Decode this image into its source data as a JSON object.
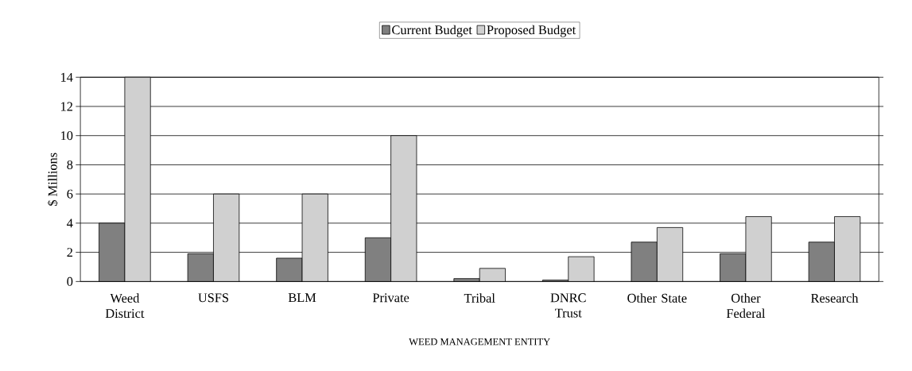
{
  "chart_data": {
    "type": "bar",
    "xlabel": "WEED MANAGEMENT ENTITY",
    "ylabel": "$ Millions",
    "categories": [
      "Weed District",
      "USFS",
      "BLM",
      "Private",
      "Tribal",
      "DNRC Trust",
      "Other State",
      "Other Federal",
      "Research"
    ],
    "series": [
      {
        "name": "Current Budget",
        "color": "#808080",
        "values": [
          4,
          1.9,
          1.6,
          3,
          0.2,
          0.1,
          2.7,
          1.9,
          2.7
        ]
      },
      {
        "name": "Proposed Budget",
        "color": "#d0d0d0",
        "values": [
          14,
          6,
          6,
          10,
          0.9,
          1.7,
          3.7,
          4.45,
          4.45
        ]
      }
    ],
    "ylim": [
      0,
      14
    ],
    "yticks": [
      0,
      2,
      4,
      6,
      8,
      10,
      12,
      14
    ],
    "grid": "y",
    "legend": "top"
  }
}
